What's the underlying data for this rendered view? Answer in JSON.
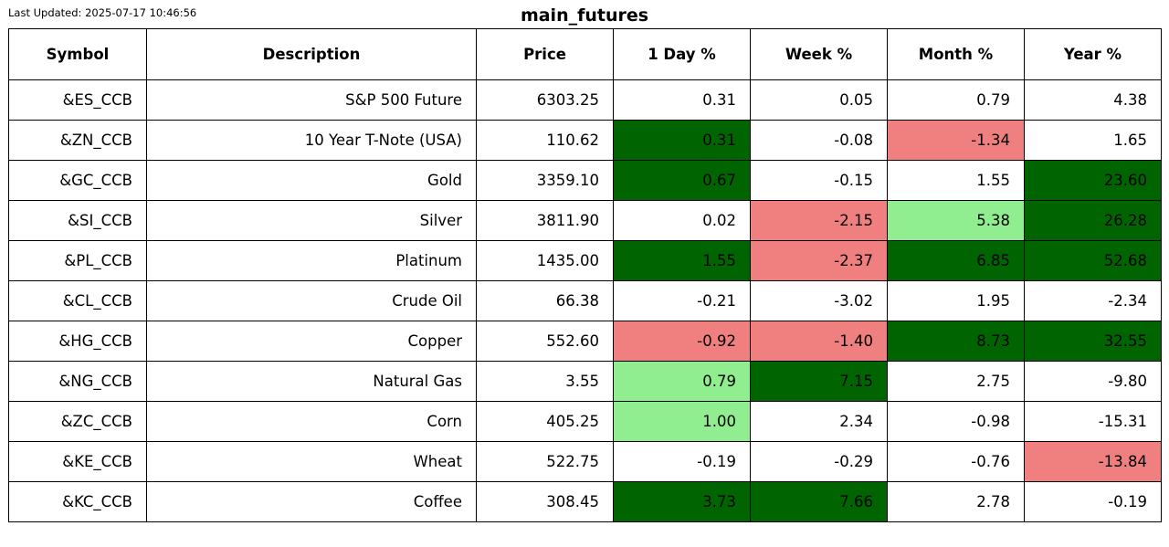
{
  "header": {
    "last_updated": "Last Updated: 2025-07-17 10:46:56",
    "title": "main_futures"
  },
  "colors": {
    "dark_green": "#006400",
    "light_green": "#90ee90",
    "light_red": "#f08080",
    "white": "#ffffff"
  },
  "chart_data": {
    "type": "table",
    "title": "main_futures",
    "columns": [
      "Symbol",
      "Description",
      "Price",
      "1 Day %",
      "Week %",
      "Month %",
      "Year %"
    ],
    "rows": [
      {
        "symbol": "&ES_CCB",
        "description": "S&P 500 Future",
        "price": "6303.25",
        "day": "0.31",
        "week": "0.05",
        "month": "0.79",
        "year": "4.38",
        "day_color": "white",
        "week_color": "white",
        "month_color": "white",
        "year_color": "white"
      },
      {
        "symbol": "&ZN_CCB",
        "description": "10 Year T-Note (USA)",
        "price": "110.62",
        "day": "0.31",
        "week": "-0.08",
        "month": "-1.34",
        "year": "1.65",
        "day_color": "dark_green",
        "week_color": "white",
        "month_color": "light_red",
        "year_color": "white"
      },
      {
        "symbol": "&GC_CCB",
        "description": "Gold",
        "price": "3359.10",
        "day": "0.67",
        "week": "-0.15",
        "month": "1.55",
        "year": "23.60",
        "day_color": "dark_green",
        "week_color": "white",
        "month_color": "white",
        "year_color": "dark_green"
      },
      {
        "symbol": "&SI_CCB",
        "description": "Silver",
        "price": "3811.90",
        "day": "0.02",
        "week": "-2.15",
        "month": "5.38",
        "year": "26.28",
        "day_color": "white",
        "week_color": "light_red",
        "month_color": "light_green",
        "year_color": "dark_green"
      },
      {
        "symbol": "&PL_CCB",
        "description": "Platinum",
        "price": "1435.00",
        "day": "1.55",
        "week": "-2.37",
        "month": "6.85",
        "year": "52.68",
        "day_color": "dark_green",
        "week_color": "light_red",
        "month_color": "dark_green",
        "year_color": "dark_green"
      },
      {
        "symbol": "&CL_CCB",
        "description": "Crude Oil",
        "price": "66.38",
        "day": "-0.21",
        "week": "-3.02",
        "month": "1.95",
        "year": "-2.34",
        "day_color": "white",
        "week_color": "white",
        "month_color": "white",
        "year_color": "white"
      },
      {
        "symbol": "&HG_CCB",
        "description": "Copper",
        "price": "552.60",
        "day": "-0.92",
        "week": "-1.40",
        "month": "8.73",
        "year": "32.55",
        "day_color": "light_red",
        "week_color": "light_red",
        "month_color": "dark_green",
        "year_color": "dark_green"
      },
      {
        "symbol": "&NG_CCB",
        "description": "Natural Gas",
        "price": "3.55",
        "day": "0.79",
        "week": "7.15",
        "month": "2.75",
        "year": "-9.80",
        "day_color": "light_green",
        "week_color": "dark_green",
        "month_color": "white",
        "year_color": "white"
      },
      {
        "symbol": "&ZC_CCB",
        "description": "Corn",
        "price": "405.25",
        "day": "1.00",
        "week": "2.34",
        "month": "-0.98",
        "year": "-15.31",
        "day_color": "light_green",
        "week_color": "white",
        "month_color": "white",
        "year_color": "white"
      },
      {
        "symbol": "&KE_CCB",
        "description": "Wheat",
        "price": "522.75",
        "day": "-0.19",
        "week": "-0.29",
        "month": "-0.76",
        "year": "-13.84",
        "day_color": "white",
        "week_color": "white",
        "month_color": "white",
        "year_color": "light_red"
      },
      {
        "symbol": "&KC_CCB",
        "description": "Coffee",
        "price": "308.45",
        "day": "3.73",
        "week": "7.66",
        "month": "2.78",
        "year": "-0.19",
        "day_color": "dark_green",
        "week_color": "dark_green",
        "month_color": "white",
        "year_color": "white"
      }
    ]
  }
}
